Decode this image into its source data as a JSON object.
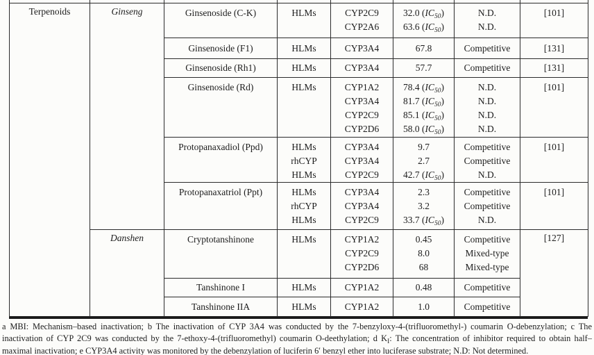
{
  "table": {
    "category_label": "Terpenoids",
    "ic50_label": {
      "prefix": "(",
      "italic": "IC",
      "sub": "50",
      "suffix": ")"
    },
    "groups": [
      {
        "herb": "Ginseng",
        "blocks": [
          {
            "compound": "Ginsenoside (C-K)",
            "ref": "[101]",
            "lines": [
              {
                "source": "HLMs",
                "cyp": "CYP2C9",
                "value": "32.0",
                "ic50": true,
                "type": "N.D."
              },
              {
                "source": "",
                "cyp": "CYP2A6",
                "value": "63.6",
                "ic50": true,
                "type": "N.D."
              }
            ]
          },
          {
            "compound": "Ginsenoside (F1)",
            "ref": "[131]",
            "lines": [
              {
                "source": "HLMs",
                "cyp": "CYP3A4",
                "value": "67.8",
                "ic50": false,
                "type": "Competitive"
              }
            ]
          },
          {
            "compound": "Ginsenoside (Rh1)",
            "ref": "[131]",
            "lines": [
              {
                "source": "HLMs",
                "cyp": "CYP3A4",
                "value": "57.7",
                "ic50": false,
                "type": "Competitive"
              }
            ]
          },
          {
            "compound": "Ginsenoside (Rd)",
            "ref": "[101]",
            "lines": [
              {
                "source": "HLMs",
                "cyp": "CYP1A2",
                "value": "78.4",
                "ic50": true,
                "type": "N.D."
              },
              {
                "source": "",
                "cyp": "CYP3A4",
                "value": "81.7",
                "ic50": true,
                "type": "N.D."
              },
              {
                "source": "",
                "cyp": "CYP2C9",
                "value": "85.1",
                "ic50": true,
                "type": "N.D."
              },
              {
                "source": "",
                "cyp": "CYP2D6",
                "value": "58.0",
                "ic50": true,
                "type": "N.D."
              }
            ]
          },
          {
            "compound": "Protopanaxadiol (Ppd)",
            "ref": "[101]",
            "lines": [
              {
                "source": "HLMs",
                "cyp": "CYP3A4",
                "value": "9.7",
                "ic50": false,
                "type": "Competitive"
              },
              {
                "source": "rhCYP",
                "cyp": "CYP3A4",
                "value": "2.7",
                "ic50": false,
                "type": "Competitive"
              },
              {
                "source": "HLMs",
                "cyp": "CYP2C9",
                "value": "42.7",
                "ic50": true,
                "type": "N.D."
              }
            ]
          },
          {
            "compound": "Protopanaxatriol (Ppt)",
            "ref": "[101]",
            "lines": [
              {
                "source": "HLMs",
                "cyp": "CYP3A4",
                "value": "2.3",
                "ic50": false,
                "type": "Competitive"
              },
              {
                "source": "rhCYP",
                "cyp": "CYP3A4",
                "value": "3.2",
                "ic50": false,
                "type": "Competitive"
              },
              {
                "source": "HLMs",
                "cyp": "CYP2C9",
                "value": "33.7",
                "ic50": true,
                "type": "N.D."
              }
            ]
          }
        ]
      },
      {
        "herb": "Danshen",
        "shared_ref": "[127]",
        "blocks": [
          {
            "compound": "Cryptotanshinone",
            "lines": [
              {
                "source": "HLMs",
                "cyp": "CYP1A2",
                "value": "0.45",
                "ic50": false,
                "type": "Competitive"
              },
              {
                "source": "",
                "cyp": "CYP2C9",
                "value": "8.0",
                "ic50": false,
                "type": "Mixed-type"
              },
              {
                "source": "",
                "cyp": "CYP2D6",
                "value": "68",
                "ic50": false,
                "type": "Mixed-type"
              }
            ]
          },
          {
            "compound": "Tanshinone I",
            "lines": [
              {
                "source": "HLMs",
                "cyp": "CYP1A2",
                "value": "0.48",
                "ic50": false,
                "type": "Competitive"
              }
            ]
          },
          {
            "compound": "Tanshinone IIA",
            "lines": [
              {
                "source": "HLMs",
                "cyp": "CYP1A2",
                "value": "1.0",
                "ic50": false,
                "type": "Competitive"
              }
            ]
          }
        ]
      }
    ]
  },
  "footnote": {
    "segments": [
      {
        "text": "a MBI: Mechanism–based inactivation; b The inactivation of CYP 3A4 was conducted by the 7-benzyloxy-4-(trifluoromethyl-) coumarin O-debenzylation; c The inactivation of CYP 2C9 was conducted by the 7-ethoxy-4-(trifluoromethyl) coumarin O-deethylation; d K"
      },
      {
        "text": "I",
        "sub": true
      },
      {
        "text": ": The concentration of inhibitor required to obtain half–maximal inactivation; e CYP3A4 activity was monitored by the debenzylation of luciferin 6′ benzyl ether into luciferase substrate; N.D: Not determined."
      }
    ]
  }
}
